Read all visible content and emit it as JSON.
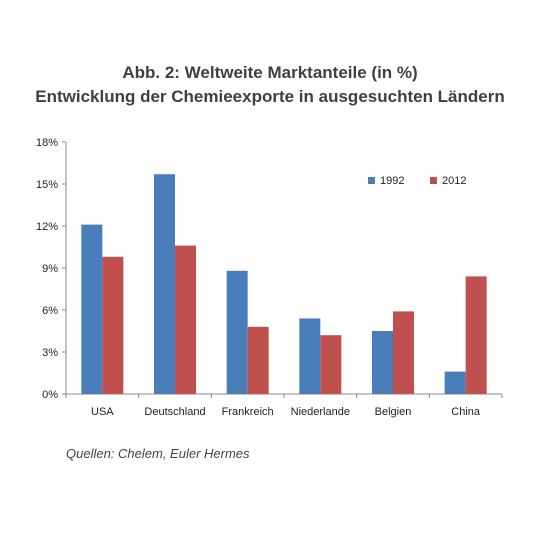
{
  "title": "Abb. 2:  Weltweite Marktanteile (in %)",
  "subtitle": "Entwicklung der Chemieexporte in ausgesuchten Ländern",
  "source": "Quellen: Chelem, Euler Hermes",
  "colors": {
    "s1992": "#4a7ebb",
    "s2012": "#c0504d"
  },
  "chart_data": {
    "type": "bar",
    "title": "Abb. 2:  Weltweite Marktanteile (in %)",
    "subtitle": "Entwicklung der Chemieexporte in ausgesuchten Ländern",
    "categories": [
      "USA",
      "Deutschland",
      "Frankreich",
      "Niederlande",
      "Belgien",
      "China"
    ],
    "series": [
      {
        "name": "1992",
        "values": [
          12.1,
          15.7,
          8.8,
          5.4,
          4.5,
          1.6
        ]
      },
      {
        "name": "2012",
        "values": [
          9.8,
          10.6,
          4.8,
          4.2,
          5.9,
          8.4
        ]
      }
    ],
    "ylim": [
      0,
      18
    ],
    "yticks": [
      "0%",
      "3%",
      "6%",
      "9%",
      "12%",
      "15%",
      "18%"
    ],
    "ytick_values": [
      0,
      3,
      6,
      9,
      12,
      15,
      18
    ],
    "grid": false,
    "legend_position": "top-right",
    "xlabel": "",
    "ylabel": ""
  }
}
